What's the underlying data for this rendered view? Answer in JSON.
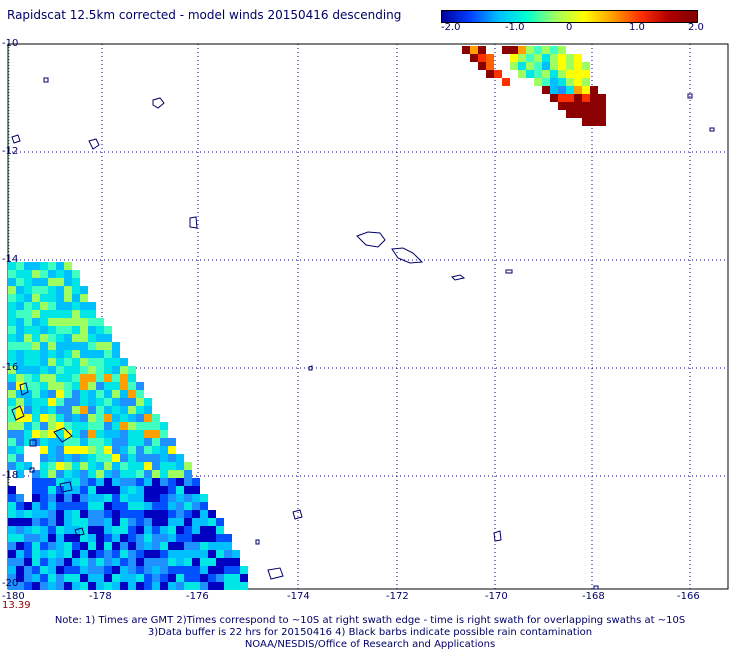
{
  "title": "Rapidscat 12.5km corrected - model winds 20150416 descending",
  "colorbar": {
    "labels": [
      "-2.0",
      "-1.0",
      "0",
      "1.0",
      "2.0"
    ],
    "colors": [
      "#0000a0",
      "#0040ff",
      "#00c0ff",
      "#00ffd0",
      "#a0ff60",
      "#ffff00",
      "#ffa000",
      "#ff3000",
      "#b00000",
      "#800000"
    ]
  },
  "axes": {
    "lon_labels": [
      "-180",
      "-178",
      "-176",
      "-174",
      "-172",
      "-170",
      "-168",
      "-166"
    ],
    "lat_labels": [
      "-10",
      "-12",
      "-14",
      "-16",
      "-18",
      "-20"
    ]
  },
  "time_label": "13.39",
  "notes": [
    "Note: 1) Times are GMT 2)Times correspond to ~10S at right swath edge - time is right swath for overlapping swaths at ~10S",
    "3)Data buffer is 22 hrs for 20150416 4) Black barbs indicate possible rain contamination",
    "NOAA/NESDIS/Office of Research and Applications"
  ]
}
